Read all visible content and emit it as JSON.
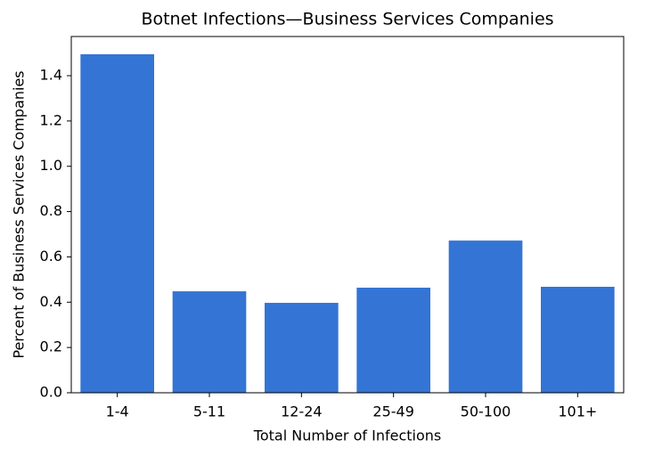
{
  "chart_data": {
    "type": "bar",
    "title": "Botnet Infections—Business Services Companies",
    "x_label": "Total Number of Infections",
    "y_label": "Percent of Business Services Companies",
    "categories": [
      "1-4",
      "5-11",
      "12-24",
      "25-49",
      "50-100",
      "101+"
    ],
    "values": [
      1.495,
      0.448,
      0.397,
      0.464,
      0.672,
      0.468
    ],
    "color": "#3474d4",
    "ylim": [
      0,
      1.573
    ],
    "yticks": [
      {
        "value": 0,
        "label": "0.0"
      },
      {
        "value": 0.2,
        "label": "0.2"
      },
      {
        "value": 0.4,
        "label": "0.4"
      },
      {
        "value": 0.6,
        "label": "0.6"
      },
      {
        "value": 0.8,
        "label": "0.8"
      },
      {
        "value": 1.0,
        "label": "1.0"
      },
      {
        "value": 1.2,
        "label": "1.2"
      },
      {
        "value": 1.4,
        "label": "1.4"
      }
    ],
    "grid": false
  }
}
